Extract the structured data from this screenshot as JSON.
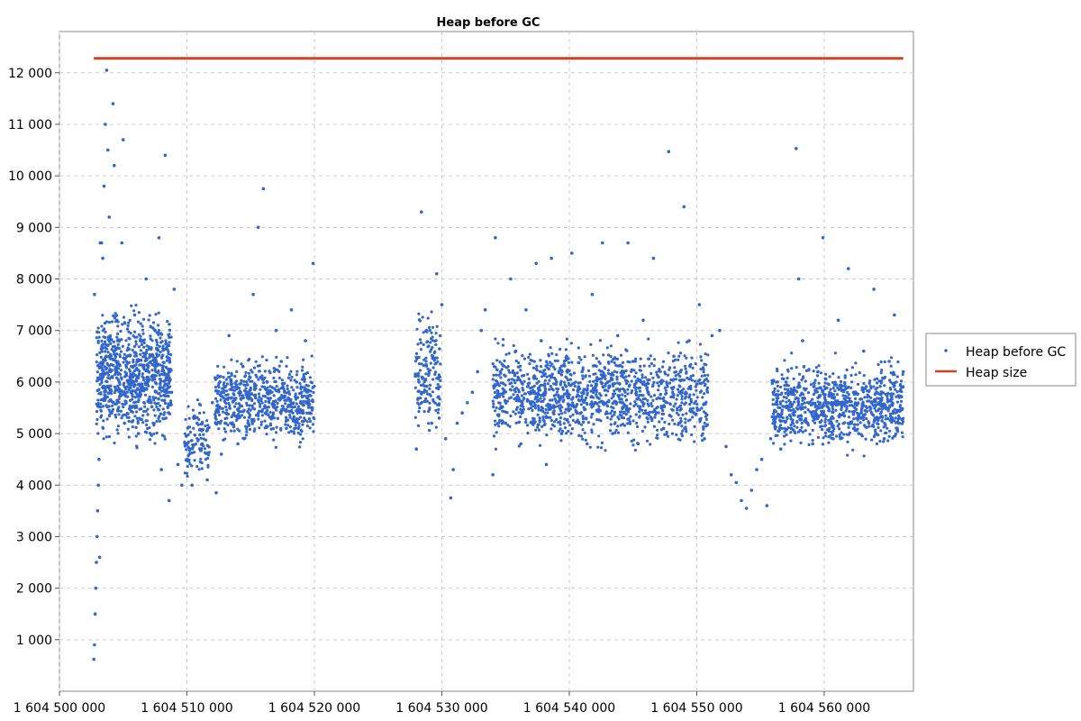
{
  "chart_data": {
    "type": "scatter",
    "title": "Heap before GC",
    "xlabel": "",
    "ylabel": "",
    "xlim": [
      1604500000,
      1604567000
    ],
    "ylim": [
      0,
      12800
    ],
    "x_ticks": [
      1604500000,
      1604510000,
      1604520000,
      1604530000,
      1604540000,
      1604550000,
      1604560000
    ],
    "x_tick_labels": [
      "1 604 500 000",
      "1 604 510 000",
      "1 604 520 000",
      "1 604 530 000",
      "1 604 540 000",
      "1 604 550 000",
      "1 604 560 000"
    ],
    "y_ticks": [
      1000,
      2000,
      3000,
      4000,
      5000,
      6000,
      7000,
      8000,
      9000,
      10000,
      11000,
      12000
    ],
    "y_tick_labels": [
      "1 000",
      "2 000",
      "3 000",
      "4 000",
      "5 000",
      "6 000",
      "7 000",
      "8 000",
      "9 000",
      "10 000",
      "11 000",
      "12 000"
    ],
    "grid": true,
    "legend_position": "right",
    "legend": [
      "Heap before GC",
      "Heap size"
    ],
    "colors": {
      "heap_before_gc": "#3366cc",
      "heap_size": "#cc4422"
    },
    "series": [
      {
        "name": "Heap size",
        "type": "line",
        "x": [
          1604502700,
          1604566200
        ],
        "y": [
          12280,
          12280
        ]
      },
      {
        "name": "Heap before GC",
        "type": "scatter",
        "points": [
          [
            1604502700,
            620
          ],
          [
            1604502750,
            900
          ],
          [
            1604502800,
            1500
          ],
          [
            1604502850,
            2000
          ],
          [
            1604502900,
            2500
          ],
          [
            1604502950,
            3000
          ],
          [
            1604503000,
            3500
          ],
          [
            1604503050,
            4000
          ],
          [
            1604503150,
            2600
          ],
          [
            1604503100,
            4500
          ],
          [
            1604502750,
            7700
          ],
          [
            1604503200,
            8700
          ],
          [
            1604503300,
            8700
          ],
          [
            1604503400,
            8400
          ],
          [
            1604503500,
            9800
          ],
          [
            1604503600,
            11000
          ],
          [
            1604503700,
            12050
          ],
          [
            1604503800,
            10500
          ],
          [
            1604503900,
            9200
          ],
          [
            1604504000,
            6200
          ],
          [
            1604504100,
            5400
          ],
          [
            1604504200,
            11400
          ],
          [
            1604504300,
            10200
          ],
          [
            1604504500,
            7200
          ],
          [
            1604504700,
            6000
          ],
          [
            1604504900,
            8700
          ],
          [
            1604505000,
            10700
          ],
          [
            1604505100,
            5200
          ],
          [
            1604505300,
            6500
          ],
          [
            1604505600,
            5800
          ],
          [
            1604505900,
            7300
          ],
          [
            1604506200,
            5000
          ],
          [
            1604506500,
            6800
          ],
          [
            1604506800,
            8000
          ],
          [
            1604507200,
            5600
          ],
          [
            1604507500,
            7000
          ],
          [
            1604507800,
            8800
          ],
          [
            1604508000,
            4300
          ],
          [
            1604508300,
            10400
          ],
          [
            1604508600,
            3700
          ],
          [
            1604508800,
            5800
          ],
          [
            1604509000,
            7800
          ],
          [
            1604509300,
            4400
          ],
          [
            1604509600,
            4000
          ],
          [
            1604510000,
            4500
          ],
          [
            1604510400,
            4000
          ],
          [
            1604510800,
            5200
          ],
          [
            1604511200,
            4800
          ],
          [
            1604511600,
            4100
          ],
          [
            1604512000,
            5600
          ],
          [
            1604512300,
            3850
          ],
          [
            1604512700,
            4600
          ],
          [
            1604513000,
            5200
          ],
          [
            1604513300,
            6900
          ],
          [
            1604513700,
            5400
          ],
          [
            1604514000,
            4800
          ],
          [
            1604514400,
            6300
          ],
          [
            1604514800,
            5200
          ],
          [
            1604515200,
            7700
          ],
          [
            1604515600,
            9000
          ],
          [
            1604516000,
            9750
          ],
          [
            1604516300,
            6000
          ],
          [
            1604516600,
            5300
          ],
          [
            1604517000,
            7000
          ],
          [
            1604517400,
            6400
          ],
          [
            1604517800,
            5100
          ],
          [
            1604518200,
            7400
          ],
          [
            1604518600,
            6000
          ],
          [
            1604519000,
            5800
          ],
          [
            1604519300,
            6800
          ],
          [
            1604519600,
            5400
          ],
          [
            1604519900,
            8300
          ],
          [
            1604528000,
            4700
          ],
          [
            1604528200,
            6000
          ],
          [
            1604528400,
            9300
          ],
          [
            1604528600,
            5800
          ],
          [
            1604528800,
            7000
          ],
          [
            1604529200,
            5200
          ],
          [
            1604529600,
            8100
          ],
          [
            1604529800,
            5300
          ],
          [
            1604530000,
            7500
          ],
          [
            1604530300,
            4900
          ],
          [
            1604530700,
            3750
          ],
          [
            1604530900,
            4300
          ],
          [
            1604531200,
            5200
          ],
          [
            1604531600,
            5400
          ],
          [
            1604532000,
            5600
          ],
          [
            1604532400,
            5800
          ],
          [
            1604532800,
            6200
          ],
          [
            1604533100,
            7000
          ],
          [
            1604533400,
            7400
          ],
          [
            1604534000,
            4200
          ],
          [
            1604534200,
            8800
          ],
          [
            1604534600,
            6200
          ],
          [
            1604535000,
            5200
          ],
          [
            1604535400,
            8000
          ],
          [
            1604535800,
            6600
          ],
          [
            1604536200,
            4800
          ],
          [
            1604536600,
            7400
          ],
          [
            1604537000,
            5600
          ],
          [
            1604537400,
            8300
          ],
          [
            1604537800,
            6800
          ],
          [
            1604538200,
            4400
          ],
          [
            1604538600,
            8400
          ],
          [
            1604539000,
            6000
          ],
          [
            1604539400,
            5000
          ],
          [
            1604539800,
            6500
          ],
          [
            1604540200,
            8500
          ],
          [
            1604540600,
            5400
          ],
          [
            1604541000,
            6200
          ],
          [
            1604541400,
            4800
          ],
          [
            1604541800,
            7700
          ],
          [
            1604542200,
            5700
          ],
          [
            1604542600,
            8700
          ],
          [
            1604543000,
            6000
          ],
          [
            1604543400,
            5000
          ],
          [
            1604543800,
            6900
          ],
          [
            1604544200,
            5500
          ],
          [
            1604544600,
            8700
          ],
          [
            1604545000,
            6400
          ],
          [
            1604545400,
            4800
          ],
          [
            1604545800,
            7200
          ],
          [
            1604546200,
            5800
          ],
          [
            1604546600,
            8400
          ],
          [
            1604547000,
            6100
          ],
          [
            1604547400,
            5100
          ],
          [
            1604547800,
            10470
          ],
          [
            1604548200,
            6500
          ],
          [
            1604548600,
            5200
          ],
          [
            1604549000,
            9400
          ],
          [
            1604549400,
            6800
          ],
          [
            1604549800,
            5400
          ],
          [
            1604550200,
            7500
          ],
          [
            1604550600,
            4900
          ],
          [
            1604551200,
            6900
          ],
          [
            1604551800,
            7000
          ],
          [
            1604552300,
            4750
          ],
          [
            1604552700,
            4200
          ],
          [
            1604553100,
            4050
          ],
          [
            1604553500,
            3700
          ],
          [
            1604553900,
            3550
          ],
          [
            1604554300,
            3900
          ],
          [
            1604554700,
            4300
          ],
          [
            1604555100,
            4500
          ],
          [
            1604555500,
            3600
          ],
          [
            1604555800,
            4900
          ],
          [
            1604556200,
            5300
          ],
          [
            1604556600,
            4700
          ],
          [
            1604557000,
            6000
          ],
          [
            1604557400,
            5100
          ],
          [
            1604557800,
            10530
          ],
          [
            1604558000,
            8000
          ],
          [
            1604558300,
            6800
          ],
          [
            1604558700,
            5200
          ],
          [
            1604559100,
            4800
          ],
          [
            1604559500,
            6200
          ],
          [
            1604559900,
            8800
          ],
          [
            1604560300,
            5600
          ],
          [
            1604560700,
            4900
          ],
          [
            1604561100,
            7200
          ],
          [
            1604561500,
            5400
          ],
          [
            1604561900,
            8200
          ],
          [
            1604562300,
            5800
          ],
          [
            1604562700,
            5000
          ],
          [
            1604563100,
            6600
          ],
          [
            1604563500,
            5200
          ],
          [
            1604563900,
            7800
          ],
          [
            1604564300,
            5600
          ],
          [
            1604564700,
            4900
          ],
          [
            1604565100,
            6400
          ],
          [
            1604565500,
            7300
          ],
          [
            1604565900,
            5200
          ],
          [
            1604566200,
            6200
          ]
        ],
        "bands": [
          {
            "x": [
              1604502900,
              1604508800
            ],
            "y": [
              4500,
              7700
            ],
            "n": 900
          },
          {
            "x": [
              1604509800,
              1604511800
            ],
            "y": [
              3900,
              5800
            ],
            "n": 120
          },
          {
            "x": [
              1604512200,
              1604520000
            ],
            "y": [
              4600,
              6700
            ],
            "n": 650
          },
          {
            "x": [
              1604527900,
              1604529900
            ],
            "y": [
              4700,
              7800
            ],
            "n": 160
          },
          {
            "x": [
              1604534000,
              1604550900
            ],
            "y": [
              4500,
              7000
            ],
            "n": 1300
          },
          {
            "x": [
              1604555900,
              1604566200
            ],
            "y": [
              4500,
              6600
            ],
            "n": 900
          }
        ]
      }
    ]
  }
}
